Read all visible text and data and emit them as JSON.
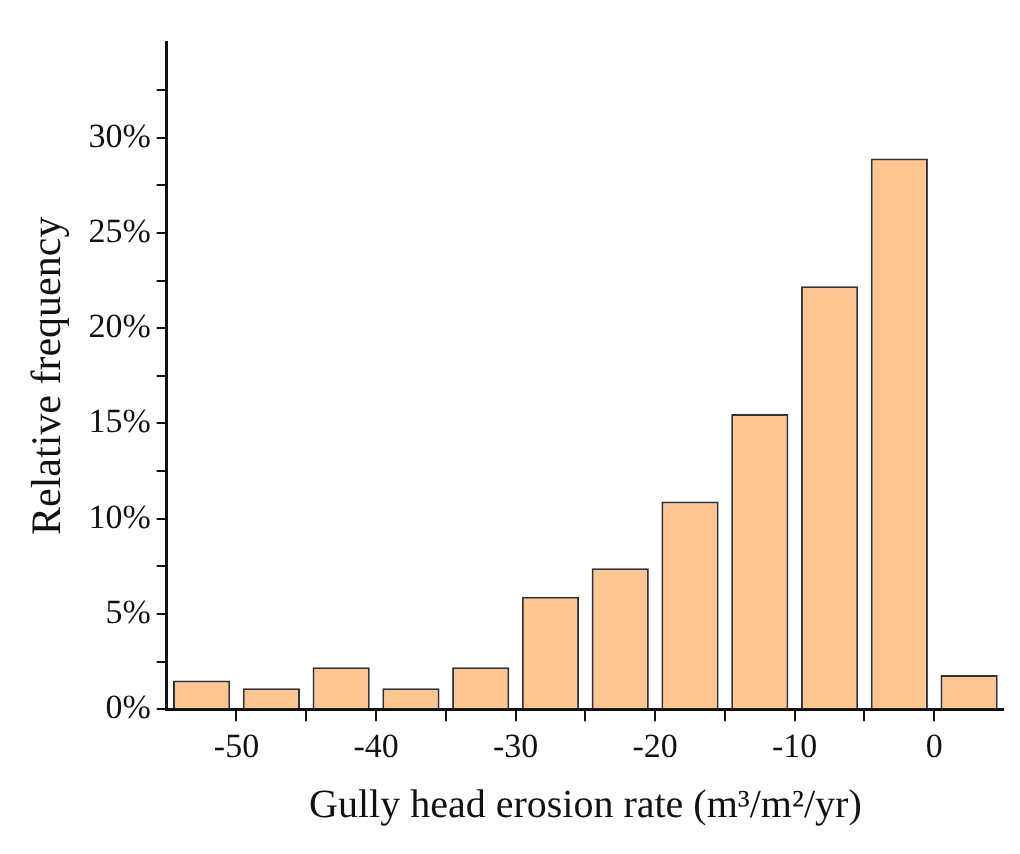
{
  "chart_data": {
    "type": "histogram",
    "xlabel": "Gully head erosion rate (m³/m²/yr)",
    "ylabel": "Relative frequency",
    "bins": [
      -55,
      -50,
      -45,
      -40,
      -35,
      -30,
      -25,
      -20,
      -15,
      -10,
      -5,
      0,
      5
    ],
    "values": [
      1.5,
      1.1,
      2.2,
      1.1,
      2.2,
      5.9,
      7.4,
      10.9,
      15.5,
      22.2,
      28.9,
      1.8
    ],
    "color": "#ffc692",
    "xlim": [
      -55,
      5
    ],
    "xticks": [
      -50,
      {
        "value": -45,
        "label": null
      },
      -40,
      {
        "value": -35,
        "label": null
      },
      -30,
      {
        "value": -25,
        "label": null
      },
      -20,
      {
        "value": -15,
        "label": null
      },
      -10,
      {
        "value": -5,
        "label": null
      },
      0
    ],
    "ylim": [
      0,
      35
    ],
    "yticks": [
      {
        "value": 0,
        "label": "0%"
      },
      {
        "value": 2.5,
        "label": null
      },
      {
        "value": 5,
        "label": "5%"
      },
      {
        "value": 7.5,
        "label": null
      },
      {
        "value": 10,
        "label": "10%"
      },
      {
        "value": 12.5,
        "label": null
      },
      {
        "value": 15,
        "label": "15%"
      },
      {
        "value": 17.5,
        "label": null
      },
      {
        "value": 20,
        "label": "20%"
      },
      {
        "value": 22.5,
        "label": null
      },
      {
        "value": 25,
        "label": "25%"
      },
      {
        "value": 27.5,
        "label": null
      },
      {
        "value": 30,
        "label": "30%"
      },
      {
        "value": 32.5,
        "label": null
      }
    ],
    "grid": false,
    "legend": false
  }
}
